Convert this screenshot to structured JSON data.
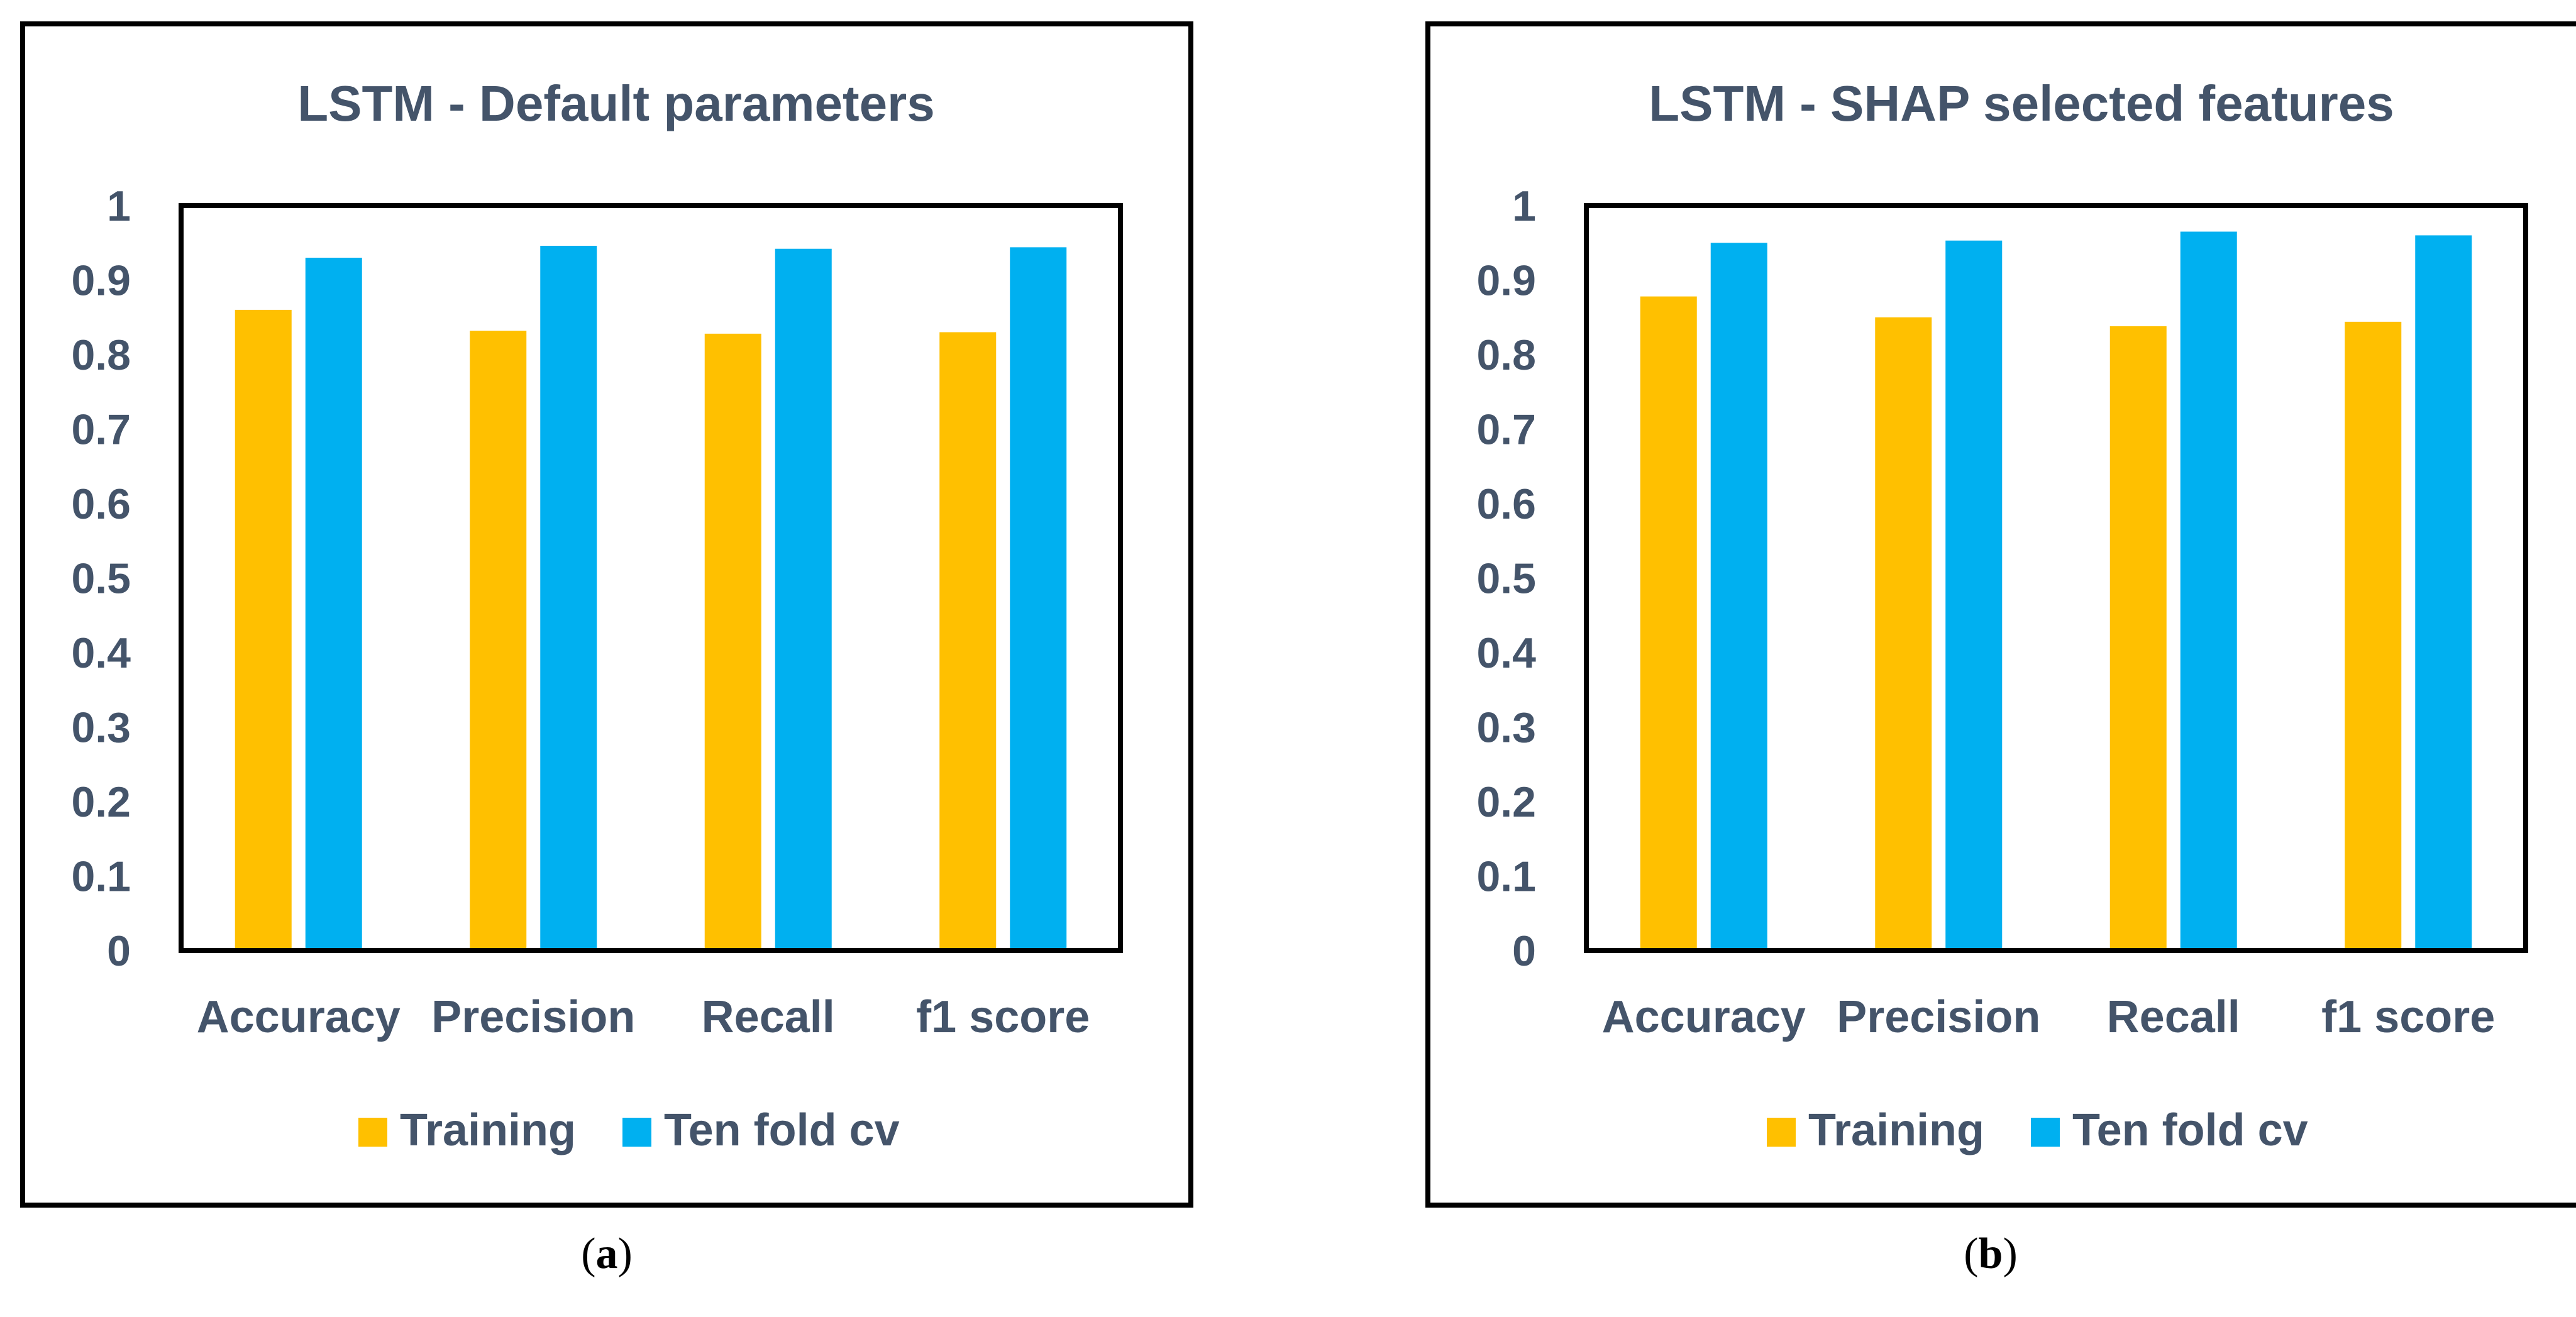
{
  "chart_data": [
    {
      "type": "bar",
      "title": "LSTM - Default parameters",
      "categories": [
        "Accuracy",
        "Precision",
        "Recall",
        "f1 score"
      ],
      "series": [
        {
          "name": "Training",
          "color": "#FFC000",
          "values": [
            0.86,
            0.832,
            0.828,
            0.83
          ]
        },
        {
          "name": "Ten fold cv",
          "color": "#00B0F0",
          "values": [
            0.93,
            0.946,
            0.942,
            0.944
          ]
        }
      ],
      "yticks": [
        "0",
        "0.1",
        "0.2",
        "0.3",
        "0.4",
        "0.5",
        "0.6",
        "0.7",
        "0.8",
        "0.9",
        "1"
      ],
      "ylim": [
        0,
        1
      ],
      "xlabel": "",
      "ylabel": "",
      "grid": false,
      "legend": "bottom"
    },
    {
      "type": "bar",
      "title": "LSTM - SHAP selected features",
      "categories": [
        "Accuracy",
        "Precision",
        "Recall",
        "f1 score"
      ],
      "series": [
        {
          "name": "Training",
          "color": "#FFC000",
          "values": [
            0.878,
            0.85,
            0.838,
            0.844
          ]
        },
        {
          "name": "Ten fold cv",
          "color": "#00B0F0",
          "values": [
            0.95,
            0.953,
            0.965,
            0.96
          ]
        }
      ],
      "yticks": [
        "0",
        "0.1",
        "0.2",
        "0.3",
        "0.4",
        "0.5",
        "0.6",
        "0.7",
        "0.8",
        "0.9",
        "1"
      ],
      "ylim": [
        0,
        1
      ],
      "xlabel": "",
      "ylabel": "",
      "grid": false,
      "legend": "bottom"
    }
  ],
  "captions": {
    "a_open": "(",
    "a_letter": "a",
    "a_close": ")",
    "b_open": "(",
    "b_letter": "b",
    "b_close": ")"
  }
}
